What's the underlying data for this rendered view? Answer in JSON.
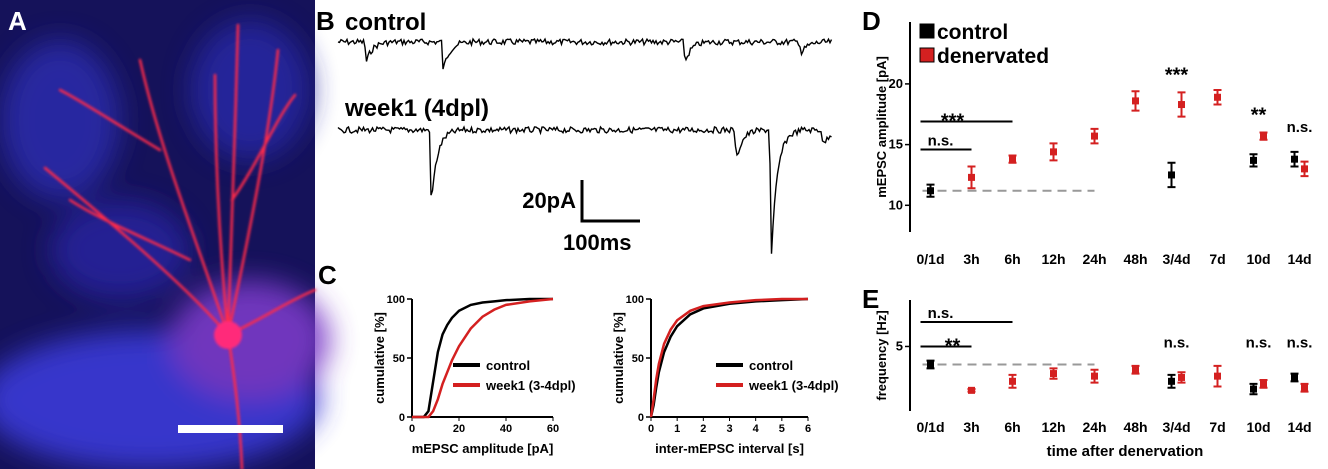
{
  "panels": {
    "A": {
      "label": "A"
    },
    "B": {
      "label": "B",
      "trace_labels": [
        "control",
        "week1 (4dpl)"
      ],
      "scale_y": "20pA",
      "scale_x": "100ms"
    }
  },
  "chart_data": [
    {
      "type": "line",
      "label": "C",
      "xlabel": "mEPSC amplitude [pA]",
      "ylabel": "cumulative [%]",
      "xlim": [
        0,
        60
      ],
      "ylim": [
        0,
        100
      ],
      "xticks": [
        0,
        20,
        40,
        60
      ],
      "yticks": [
        0,
        50,
        100
      ],
      "x": [
        0,
        5,
        7,
        9,
        11,
        13,
        15,
        17,
        20,
        25,
        30,
        35,
        40,
        50,
        60
      ],
      "series": [
        {
          "name": "control",
          "color": "#000000",
          "values": [
            0,
            0,
            5,
            30,
            55,
            70,
            78,
            84,
            90,
            95,
            97,
            98,
            99,
            100,
            100
          ]
        },
        {
          "name": "week1 (3-4dpl)",
          "color": "#d42020",
          "values": [
            0,
            0,
            0,
            5,
            15,
            28,
            38,
            48,
            60,
            75,
            85,
            91,
            95,
            98,
            100
          ]
        }
      ]
    },
    {
      "type": "line",
      "xlabel": "inter-mEPSC interval [s]",
      "ylabel": "cumulative [%]",
      "xlim": [
        0,
        6
      ],
      "ylim": [
        0,
        100
      ],
      "xticks": [
        0,
        1,
        2,
        3,
        4,
        5,
        6
      ],
      "yticks": [
        0,
        50,
        100
      ],
      "x": [
        0,
        0.1,
        0.2,
        0.3,
        0.5,
        0.75,
        1,
        1.5,
        2,
        3,
        4,
        5,
        6
      ],
      "series": [
        {
          "name": "control",
          "color": "#000000",
          "values": [
            0,
            10,
            25,
            38,
            55,
            68,
            77,
            87,
            92,
            96,
            98,
            99,
            100
          ]
        },
        {
          "name": "week1 (3-4dpl)",
          "color": "#d42020",
          "values": [
            0,
            15,
            32,
            45,
            62,
            74,
            82,
            90,
            94,
            97,
            99,
            100,
            100
          ]
        }
      ]
    },
    {
      "type": "errorbar",
      "label": "D",
      "ylabel": "mEPSC amplitude [pA]",
      "ylim": [
        7.8,
        25.1
      ],
      "yticks": [
        10,
        15,
        20
      ],
      "legend": "upper left",
      "categories": [
        "0/1d",
        "3h",
        "6h",
        "12h",
        "24h",
        "48h",
        "3/4d",
        "7d",
        "10d",
        "14d"
      ],
      "reference_line": 11.2,
      "reference_until": "24h",
      "series": [
        {
          "name": "control",
          "color": "#000000",
          "values": [
            11.2,
            null,
            null,
            null,
            null,
            null,
            12.5,
            null,
            13.7,
            13.8
          ],
          "errors": [
            0.5,
            null,
            null,
            null,
            null,
            null,
            1.0,
            null,
            0.5,
            0.6
          ]
        },
        {
          "name": "denervated",
          "color": "#d42020",
          "values": [
            null,
            12.3,
            13.8,
            14.4,
            15.7,
            18.6,
            18.3,
            18.9,
            15.7,
            13.0
          ],
          "errors": [
            null,
            0.9,
            0.3,
            0.7,
            0.6,
            0.8,
            1.0,
            0.6,
            0.3,
            0.6
          ]
        }
      ],
      "annotations": [
        {
          "text": "n.s.",
          "from": "0/1d",
          "to": "3h",
          "y": 14.6
        },
        {
          "text": "***",
          "from": "0/1d",
          "to": "6h",
          "y": 16.9
        },
        {
          "text": "***",
          "at": "3/4d",
          "y": 20.7
        },
        {
          "text": "**",
          "at": "10d",
          "y": 17.4
        },
        {
          "text": "n.s.",
          "at": "14d",
          "y": 15.7
        }
      ]
    },
    {
      "type": "errorbar",
      "label": "E",
      "ylabel": "frequency [Hz]",
      "xlabel": "time after denervation",
      "ylim": [
        0,
        8.6
      ],
      "yticks": [
        5
      ],
      "categories": [
        "0/1d",
        "3h",
        "6h",
        "12h",
        "24h",
        "48h",
        "3/4d",
        "7d",
        "10d",
        "14d"
      ],
      "reference_line": 3.6,
      "reference_until": "24h",
      "series": [
        {
          "name": "control",
          "color": "#000000",
          "values": [
            3.6,
            null,
            null,
            null,
            null,
            null,
            2.3,
            null,
            1.7,
            2.6
          ],
          "errors": [
            0.3,
            null,
            null,
            null,
            null,
            null,
            0.5,
            null,
            0.4,
            0.3
          ]
        },
        {
          "name": "denervated",
          "color": "#d42020",
          "values": [
            null,
            1.6,
            2.3,
            2.9,
            2.7,
            3.2,
            2.6,
            2.7,
            2.1,
            1.8
          ],
          "errors": [
            null,
            0.1,
            0.5,
            0.4,
            0.5,
            0.3,
            0.4,
            0.8,
            0.3,
            0.3
          ]
        }
      ],
      "annotations": [
        {
          "text": "**",
          "from": "0/1d",
          "to": "3h",
          "y": 5.0
        },
        {
          "text": "n.s.",
          "from": "0/1d",
          "to": "6h",
          "y": 6.9
        },
        {
          "text": "n.s.",
          "at": "3/4d",
          "y": 4.6
        },
        {
          "text": "n.s.",
          "at": "10d",
          "y": 4.6
        },
        {
          "text": "n.s.",
          "at": "14d",
          "y": 4.6
        }
      ]
    }
  ]
}
